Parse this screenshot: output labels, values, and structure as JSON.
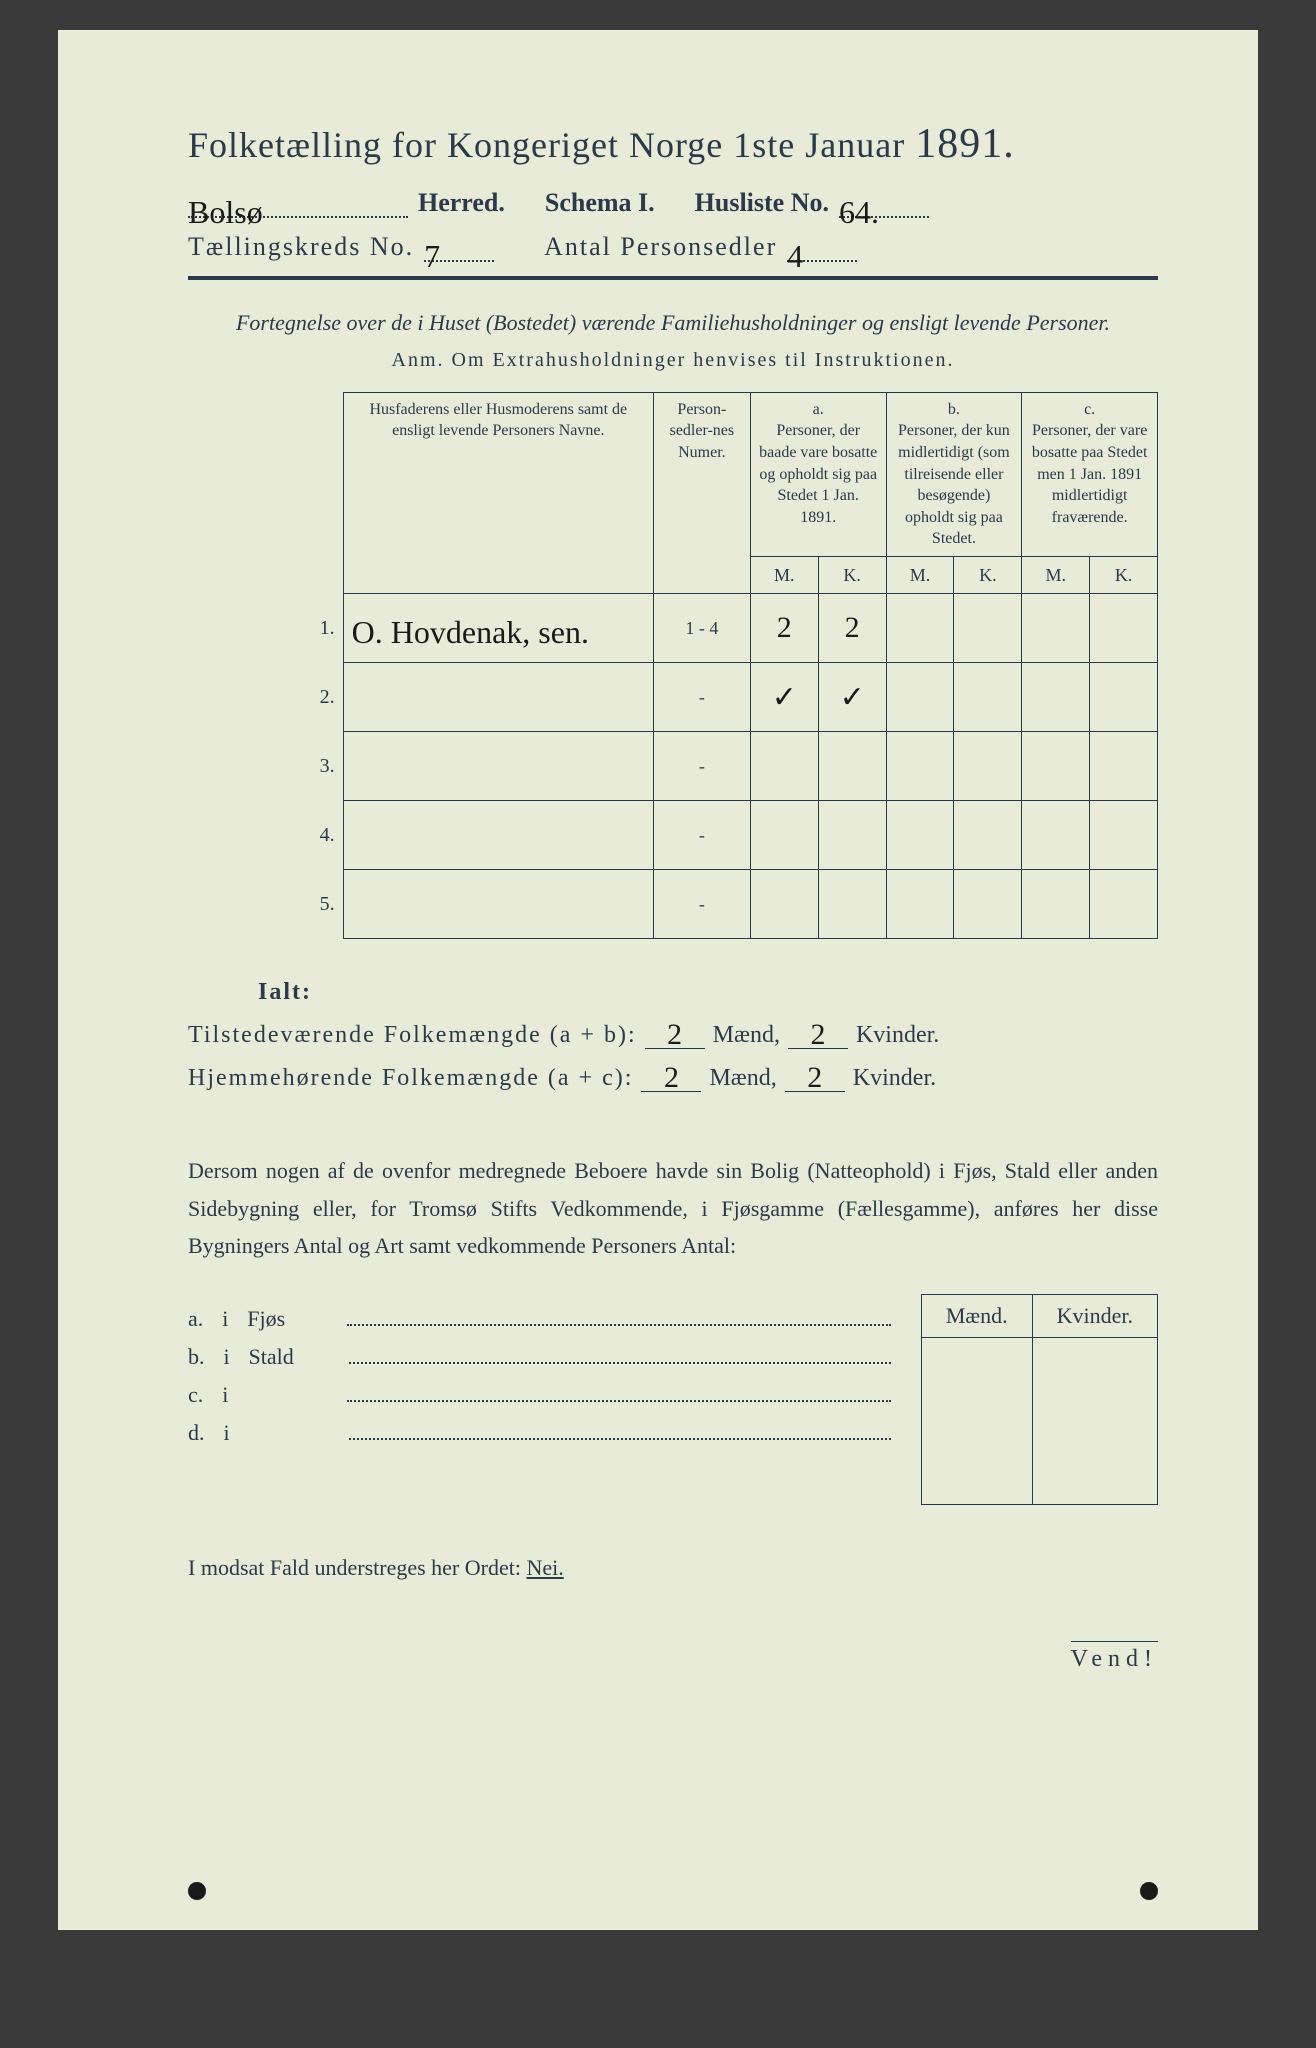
{
  "header": {
    "title_prefix": "Folketælling for Kongeriget Norge 1ste Januar",
    "year": "1891.",
    "herred_value": "Bolsø",
    "herred_label": "Herred.",
    "schema_label": "Schema I.",
    "husliste_label": "Husliste No.",
    "husliste_value": "64.",
    "kreds_label": "Tællingskreds No.",
    "kreds_value": "7",
    "antal_label": "Antal Personsedler",
    "antal_value": "4"
  },
  "subtitle": {
    "line": "Fortegnelse over de i Huset (Bostedet) værende Familiehusholdninger og ensligt levende Personer.",
    "anm": "Anm.  Om Extrahusholdninger henvises til Instruktionen."
  },
  "table": {
    "head": {
      "names": "Husfaderens eller Husmoderens samt de ensligt levende Personers Navne.",
      "personsedler": "Person-sedler-nes Numer.",
      "a_label": "a.",
      "a_text": "Personer, der baade vare bosatte og opholdt sig paa Stedet 1 Jan. 1891.",
      "b_label": "b.",
      "b_text": "Personer, der kun midlertidigt (som tilreisende eller besøgende) opholdt sig paa Stedet.",
      "c_label": "c.",
      "c_text": "Personer, der vare bosatte paa Stedet men 1 Jan. 1891 midlertidigt fraværende.",
      "M": "M.",
      "K": "K."
    },
    "rows": [
      {
        "num": "1.",
        "name": "O. Hovdenak, sen.",
        "ps": "1 - 4",
        "aM": "2",
        "aK": "2",
        "bM": "",
        "bK": "",
        "cM": "",
        "cK": ""
      },
      {
        "num": "2.",
        "name": "",
        "ps": "-",
        "aM": "✓",
        "aK": "✓",
        "bM": "",
        "bK": "",
        "cM": "",
        "cK": ""
      },
      {
        "num": "3.",
        "name": "",
        "ps": "-",
        "aM": "",
        "aK": "",
        "bM": "",
        "bK": "",
        "cM": "",
        "cK": ""
      },
      {
        "num": "4.",
        "name": "",
        "ps": "-",
        "aM": "",
        "aK": "",
        "bM": "",
        "bK": "",
        "cM": "",
        "cK": ""
      },
      {
        "num": "5.",
        "name": "",
        "ps": "-",
        "aM": "",
        "aK": "",
        "bM": "",
        "bK": "",
        "cM": "",
        "cK": ""
      }
    ]
  },
  "totals": {
    "ialt": "Ialt:",
    "tilstede_label": "Tilstedeværende Folkemængde (a + b):",
    "hjemme_label": "Hjemmehørende Folkemængde (a + c):",
    "maend": "Mænd,",
    "kvinder": "Kvinder.",
    "tilstede_M": "2",
    "tilstede_K": "2",
    "hjemme_M": "2",
    "hjemme_K": "2"
  },
  "para": "Dersom nogen af de ovenfor medregnede Beboere havde sin Bolig (Natteophold) i Fjøs, Stald eller anden Sidebygning eller, for Tromsø Stifts Vedkommende, i Fjøsgamme (Fællesgamme), anføres her disse Bygningers Antal og Art samt vedkommende Personers Antal:",
  "side": {
    "M": "Mænd.",
    "K": "Kvinder.",
    "rows": [
      {
        "k": "a.",
        "i": "i",
        "label": "Fjøs"
      },
      {
        "k": "b.",
        "i": "i",
        "label": "Stald"
      },
      {
        "k": "c.",
        "i": "i",
        "label": ""
      },
      {
        "k": "d.",
        "i": "i",
        "label": ""
      }
    ]
  },
  "nei": {
    "text": "I modsat Fald understreges her Ordet:",
    "word": "Nei."
  },
  "vend": "Vend!"
}
